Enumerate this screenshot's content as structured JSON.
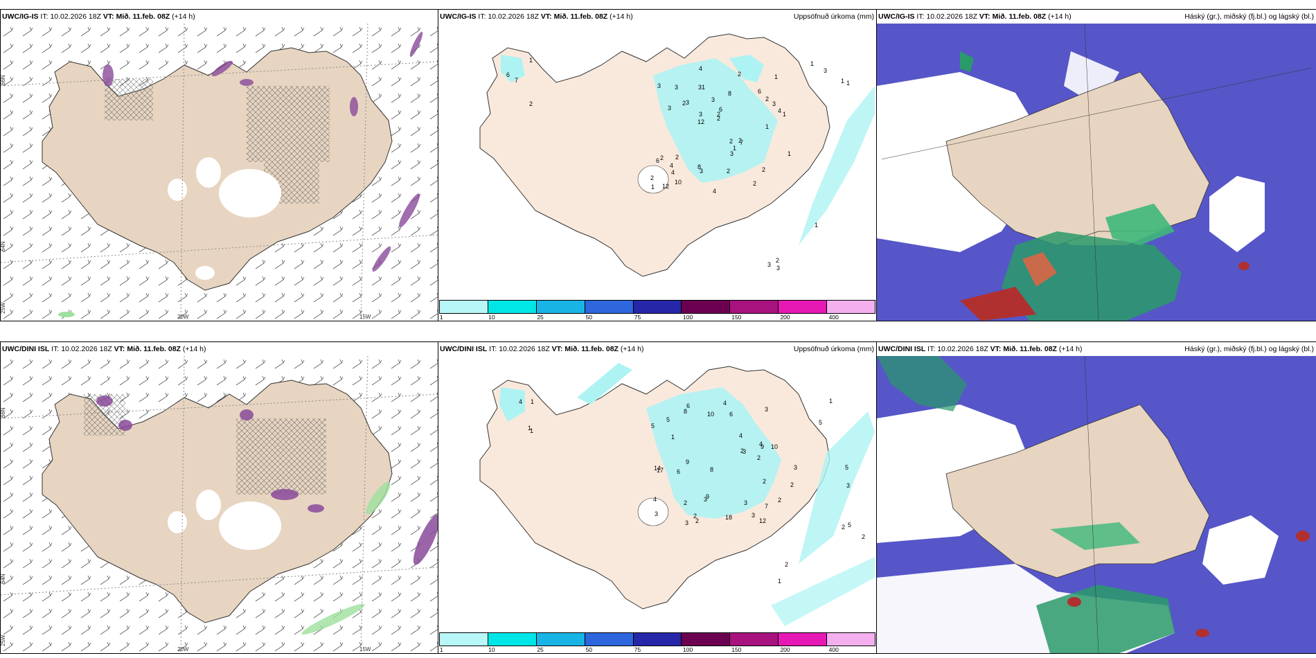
{
  "panels": {
    "tl": {
      "model": "UWC/IG-IS",
      "it_label": "IT:",
      "it": "10.02.2026 18Z",
      "vt_label": "VT:",
      "vt": "Mið. 11.feb. 08Z",
      "lead": "(+14 h)",
      "right": ""
    },
    "tm": {
      "model": "UWC/IG-IS",
      "it_label": "IT:",
      "it": "10.02.2026 18Z",
      "vt_label": "VT:",
      "vt": "Mið. 11.feb. 08Z",
      "lead": "(+14 h)",
      "right": "Uppsöfnuð úrkoma (mm)"
    },
    "tr": {
      "model": "UWC/IG-IS",
      "it_label": "IT:",
      "it": "10.02.2026 18Z",
      "vt_label": "VT:",
      "vt": "Mið. 11.feb. 08Z",
      "lead": "(+14 h)",
      "right": "Háský (gr.), miðský (fj.bl.) og lágský (bl.)"
    },
    "bl": {
      "model": "UWC/DINI ISL",
      "it_label": "IT:",
      "it": "10.02.2026 18Z",
      "vt_label": "VT:",
      "vt": "Mið. 11.feb. 08Z",
      "lead": "(+14 h)",
      "right": ""
    },
    "bm": {
      "model": "UWC/DINI ISL",
      "it_label": "IT:",
      "it": "10.02.2026 18Z",
      "vt_label": "VT:",
      "vt": "Mið. 11.feb. 08Z",
      "lead": "(+14 h)",
      "right": "Uppsöfnuð úrkoma (mm)"
    },
    "br": {
      "model": "UWC/DINI ISL",
      "it_label": "IT:",
      "it": "10.02.2026 18Z",
      "vt_label": "VT:",
      "vt": "Mið. 11.feb. 08Z",
      "lead": "(+14 h)",
      "right": "Háský (gr.), miðský (fj.bl.) og lágský (bl.)"
    }
  },
  "axes": {
    "lat66": "66N",
    "lat64": "64N",
    "lon20": "20W",
    "lon15": "15W",
    "lon25": "25W"
  },
  "colorbar": {
    "colors": [
      "#b8f7f7",
      "#00e6e6",
      "#19b4e6",
      "#2e66dd",
      "#2626a8",
      "#6b0050",
      "#a8127f",
      "#e619b4",
      "#f4b0ee"
    ],
    "ticks": [
      "1",
      "10",
      "25",
      "50",
      "75",
      "100",
      "150",
      "200",
      "400"
    ]
  },
  "colors": {
    "land": "#e7d5c1",
    "precip_light": "#aef3f3",
    "cloud_low": "#5656c8",
    "cloud_mid": "#ffffff",
    "cloud_high": "#2a9a6a"
  },
  "precip_top": [
    "2",
    "6",
    "1",
    "7",
    "8",
    "12",
    "3",
    "3",
    "2",
    "3",
    "2",
    "4",
    "1",
    "6",
    "7",
    "3",
    "4",
    "4",
    "2",
    "2",
    "12",
    "8",
    "3",
    "3",
    "2",
    "2",
    "2",
    "2",
    "2",
    "4",
    "2",
    "3",
    "3",
    "10",
    "3",
    "2",
    "1",
    "3",
    "2",
    "6",
    "6",
    "1",
    "1",
    "2",
    "4",
    "3",
    "3",
    "1",
    "1",
    "1",
    "1",
    "1",
    "1",
    "1",
    "2",
    "3"
  ],
  "precip_bottom": [
    "1",
    "1",
    "1",
    "4",
    "3",
    "6",
    "4",
    "2",
    "3",
    "1",
    "10",
    "5",
    "2",
    "2",
    "4",
    "5",
    "7",
    "8",
    "9",
    "9",
    "14",
    "17",
    "18",
    "2",
    "2",
    "3",
    "4",
    "6",
    "4",
    "2",
    "6",
    "3",
    "3",
    "8",
    "2",
    "3",
    "3",
    "10",
    "12",
    "9",
    "5",
    "3",
    "5",
    "2",
    "2",
    "2",
    "1",
    "1",
    "3",
    "5",
    "2"
  ]
}
